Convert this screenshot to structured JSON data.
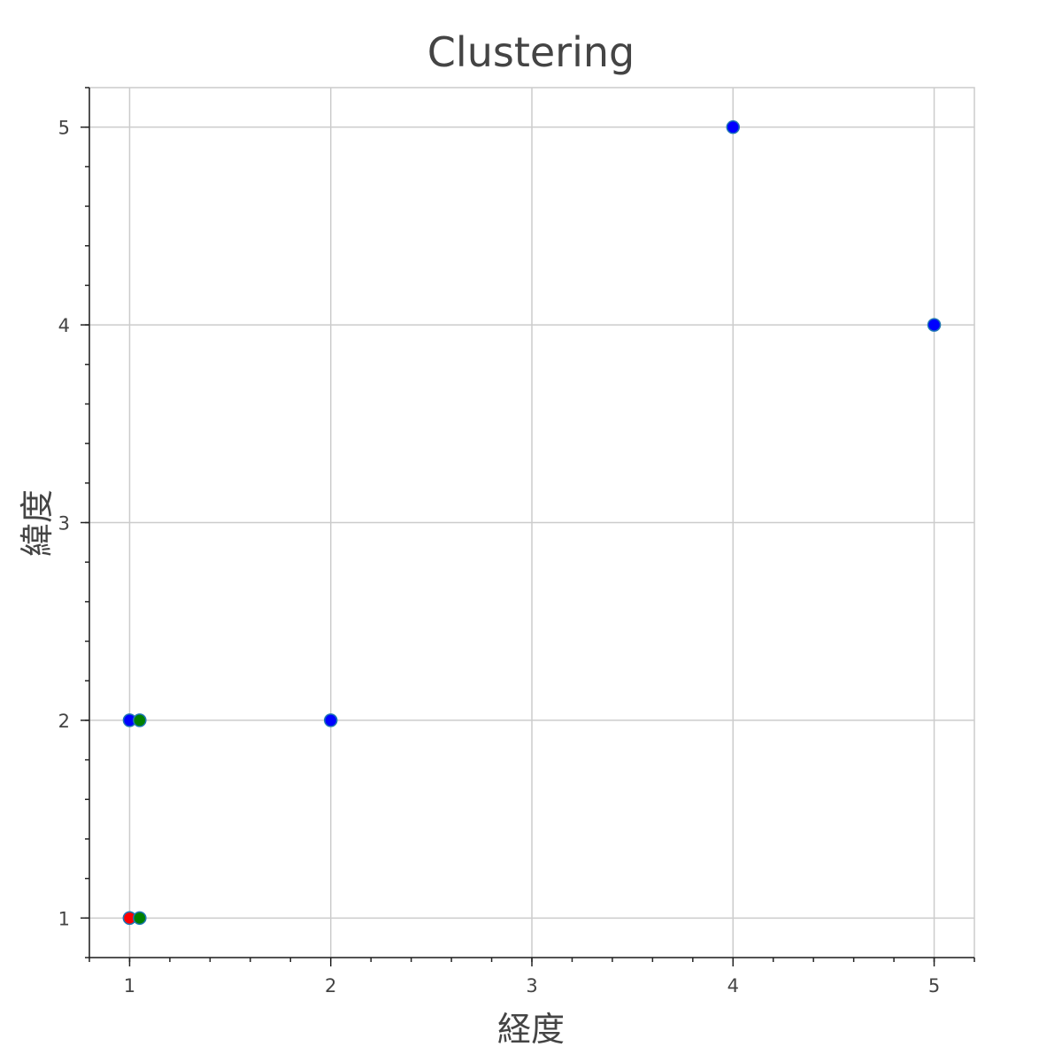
{
  "chart_data": {
    "type": "scatter",
    "title": "Clustering",
    "xlabel": "経度",
    "ylabel": "緯度",
    "xlim": [
      0.8,
      5.2
    ],
    "ylim": [
      0.8,
      5.2
    ],
    "xticks": [
      1,
      2,
      3,
      4,
      5
    ],
    "yticks": [
      1,
      2,
      3,
      4,
      5
    ],
    "grid": true,
    "series": [
      {
        "color": "#0000ff",
        "points": [
          {
            "x": 1,
            "y": 1
          },
          {
            "x": 1,
            "y": 2
          },
          {
            "x": 2,
            "y": 2
          },
          {
            "x": 4,
            "y": 5
          },
          {
            "x": 5,
            "y": 4
          }
        ]
      },
      {
        "color": "#ff0000",
        "points": [
          {
            "x": 1,
            "y": 1
          }
        ]
      },
      {
        "color": "#008000",
        "points": [
          {
            "x": 1.05,
            "y": 1
          },
          {
            "x": 1.05,
            "y": 2
          }
        ]
      }
    ]
  }
}
